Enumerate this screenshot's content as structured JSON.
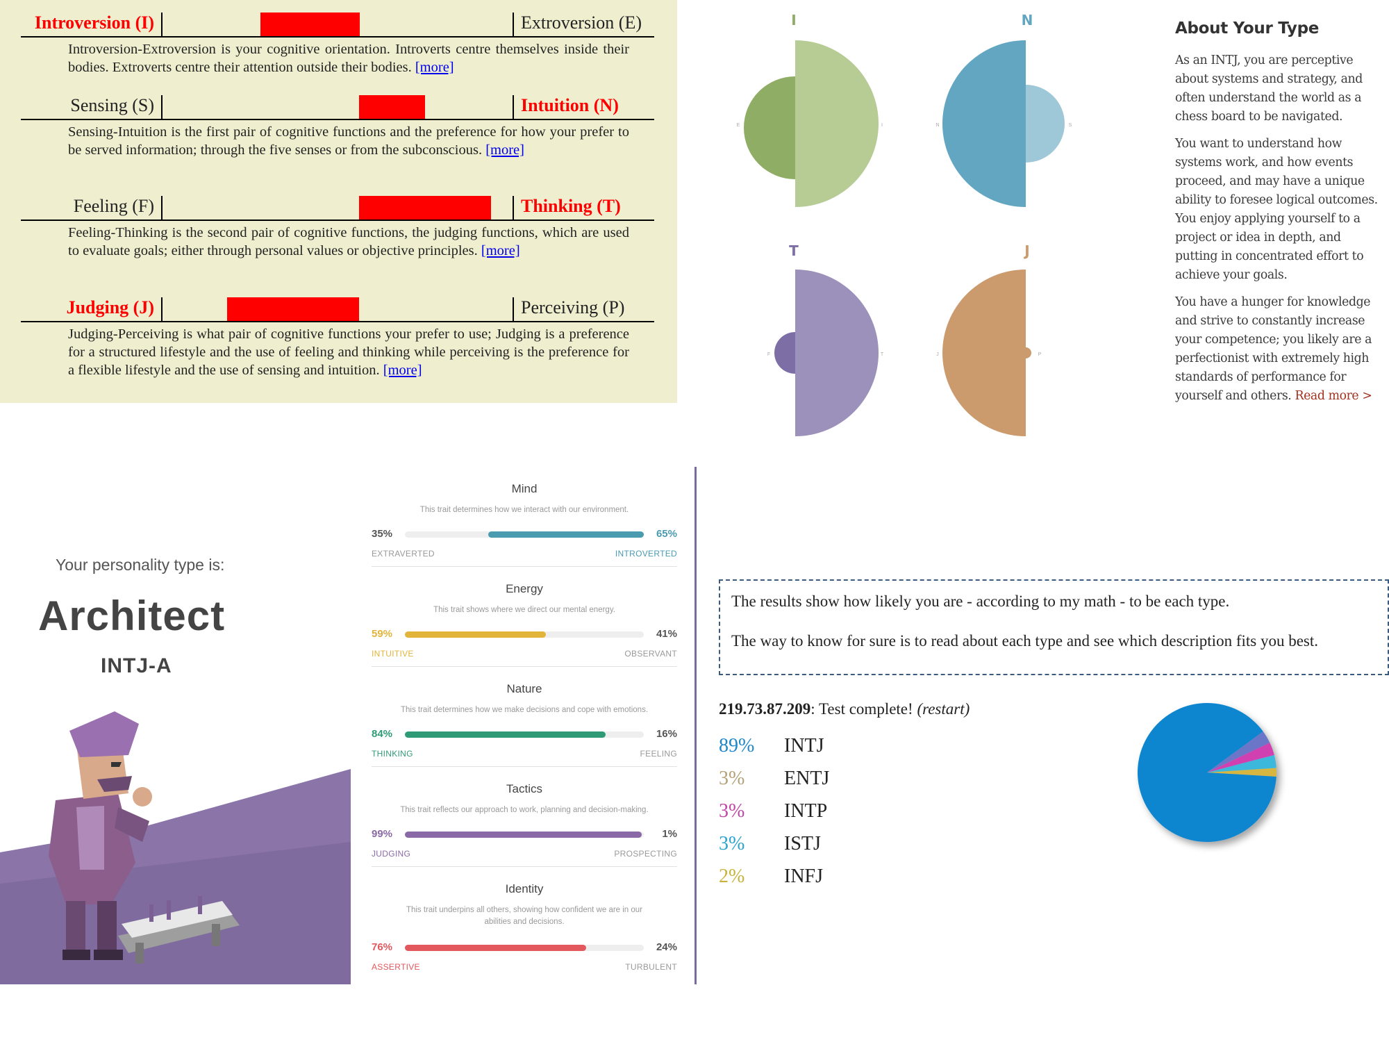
{
  "dichotomies": [
    {
      "left": "Introversion (I)",
      "right": "Extroversion (E)",
      "strong": "left",
      "barLeft": 345,
      "barWidth": 143,
      "desc": "Introversion-Extroversion is your cognitive orientation. Introverts centre themselves inside their bodies. Extroverts centre their attention outside their bodies.",
      "more": "[more]"
    },
    {
      "left": "Sensing (S)",
      "right": "Intuition (N)",
      "strong": "right",
      "barLeft": 487,
      "barWidth": 95,
      "desc": "Sensing-Intuition is the first pair of cognitive functions and the preference for how your prefer to be served information; through the five senses or from the subconscious.",
      "more": "[more]"
    },
    {
      "left": "Feeling (F)",
      "right": "Thinking (T)",
      "strong": "right",
      "barLeft": 487,
      "barWidth": 190,
      "desc": "Feeling-Thinking is the second pair of cognitive functions, the judging functions, which are used to evaluate goals; either through personal values or objective principles.",
      "more": "[more]"
    },
    {
      "left": "Judging (J)",
      "right": "Perceiving (P)",
      "strong": "left",
      "barLeft": 297,
      "barWidth": 190,
      "desc": "Judging-Perceiving is what pair of cognitive functions your prefer to use; Judging is a preference for a structured lifestyle and the use of feeling and thinking while perceiving is the preference for a flexible lifestyle and the use of sensing and intuition.",
      "more": "[more]"
    }
  ],
  "semicircles": [
    {
      "letter": "I",
      "left_small": "E",
      "right_small": "I",
      "color": "#b6cc94",
      "minor_color": "#8fad65",
      "major_side": "right"
    },
    {
      "letter": "N",
      "left_small": "N",
      "right_small": "S",
      "color": "#62a6c1",
      "minor_color": "#9ec7d7",
      "major_side": "left"
    },
    {
      "letter": "T",
      "left_small": "F",
      "right_small": "T",
      "color": "#9b91bb",
      "minor_color": "#7e6ea6",
      "major_side": "right"
    },
    {
      "letter": "J",
      "left_small": "J",
      "right_small": "P",
      "color": "#cb9a6d",
      "minor_color": "#cb9a6d",
      "major_side": "left"
    }
  ],
  "about": {
    "title": "About Your Type",
    "p1": "As an INTJ, you are perceptive about systems and strategy, and often understand the world as a chess board to be navigated.",
    "p2": "You want to understand how systems work, and how events proceed, and may have a unique ability to foresee logical outcomes. You enjoy applying yourself to a project or idea in depth, and putting in concentrated effort to achieve your goals.",
    "p3": "You have a hunger for knowledge and strive to constantly increase your competence; you likely are a perfectionist with extremely high standards of performance for yourself and others.",
    "readmore": "Read more >"
  },
  "architect": {
    "label": "Your personality type is:",
    "name": "Architect",
    "code": "INTJ-A"
  },
  "traits": [
    {
      "title": "Mind",
      "sub": "This trait determines how we interact with our environment.",
      "leftPct": "35%",
      "rightPct": "65%",
      "leftName": "EXTRAVERTED",
      "rightName": "INTROVERTED",
      "value": 65,
      "side": "right",
      "color": "#4a9bb0"
    },
    {
      "title": "Energy",
      "sub": "This trait shows where we direct our mental energy.",
      "leftPct": "59%",
      "rightPct": "41%",
      "leftName": "INTUITIVE",
      "rightName": "OBSERVANT",
      "value": 59,
      "side": "left",
      "color": "#e3b43a"
    },
    {
      "title": "Nature",
      "sub": "This trait determines how we make decisions and cope with emotions.",
      "leftPct": "84%",
      "rightPct": "16%",
      "leftName": "THINKING",
      "rightName": "FEELING",
      "value": 84,
      "side": "left",
      "color": "#2f9b76"
    },
    {
      "title": "Tactics",
      "sub": "This trait reflects our approach to work, planning and decision-making.",
      "leftPct": "99%",
      "rightPct": "1%",
      "leftName": "JUDGING",
      "rightName": "PROSPECTING",
      "value": 99,
      "side": "left",
      "color": "#8a6aa6"
    },
    {
      "title": "Identity",
      "sub": "This trait underpins all others, showing how confident we are in our abilities and decisions.",
      "leftPct": "76%",
      "rightPct": "24%",
      "leftName": "ASSERTIVE",
      "rightName": "TURBULENT",
      "value": 76,
      "side": "left",
      "color": "#e2585c"
    }
  ],
  "results": {
    "note1": "The results show how likely you are - according to my math - to be each type.",
    "note2": "The way to know for sure is to read about each type and see which description fits you best.",
    "ip": "219.73.87.209",
    "status": ": Test complete! ",
    "restart": "(restart)",
    "rows": [
      {
        "pct": "89%",
        "type": "INTJ",
        "color": "#1f86c9"
      },
      {
        "pct": "3%",
        "type": "ENTJ",
        "color": "#b4a276"
      },
      {
        "pct": "3%",
        "type": "INTP",
        "color": "#c144a6"
      },
      {
        "pct": "3%",
        "type": "ISTJ",
        "color": "#29a3d1"
      },
      {
        "pct": "2%",
        "type": "INFJ",
        "color": "#c7b33a"
      }
    ]
  },
  "chart_data": {
    "type": "pie",
    "categories": [
      "INTJ",
      "ENTJ",
      "INTP",
      "ISTJ",
      "INFJ"
    ],
    "values": [
      89,
      3,
      3,
      3,
      2
    ],
    "colors": [
      "#0b86cf",
      "#6c76c8",
      "#d040b0",
      "#3cb8dd",
      "#d6b640"
    ]
  }
}
